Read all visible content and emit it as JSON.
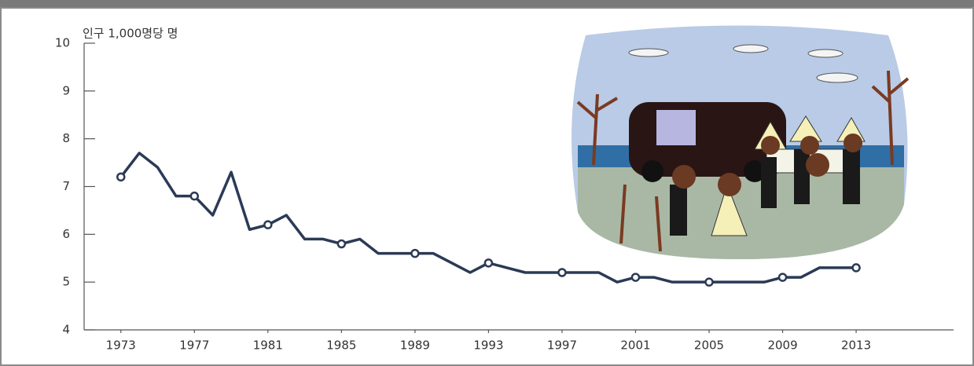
{
  "chart_data": {
    "type": "line",
    "y_label": "인구 1,000명당 명",
    "x": [
      1973,
      1974,
      1975,
      1976,
      1977,
      1978,
      1979,
      1980,
      1981,
      1982,
      1983,
      1984,
      1985,
      1986,
      1987,
      1988,
      1989,
      1990,
      1991,
      1992,
      1993,
      1994,
      1995,
      1996,
      1997,
      1998,
      1999,
      2000,
      2001,
      2002,
      2003,
      2004,
      2005,
      2006,
      2007,
      2008,
      2009,
      2010,
      2011,
      2012,
      2013
    ],
    "series": [
      {
        "color": "#2b3a55",
        "values": [
          7.2,
          7.7,
          7.4,
          6.8,
          6.8,
          6.4,
          7.3,
          6.1,
          6.2,
          6.4,
          5.9,
          5.9,
          5.8,
          5.9,
          5.6,
          5.6,
          5.6,
          5.6,
          5.4,
          5.2,
          5.4,
          5.3,
          5.2,
          5.2,
          5.2,
          5.2,
          5.2,
          5.0,
          5.1,
          5.1,
          5.0,
          5.0,
          5.0,
          5.0,
          5.0,
          5.0,
          5.1,
          5.1,
          5.3,
          5.3,
          5.3
        ]
      }
    ],
    "xlim": [
      1971,
      2018.3
    ],
    "xticks": [
      1973,
      1977,
      1981,
      1985,
      1989,
      1993,
      1997,
      2001,
      2005,
      2009,
      2013
    ],
    "ylim": [
      4,
      10
    ],
    "yticks": [
      4,
      5,
      6,
      7,
      8,
      9,
      10
    ]
  }
}
